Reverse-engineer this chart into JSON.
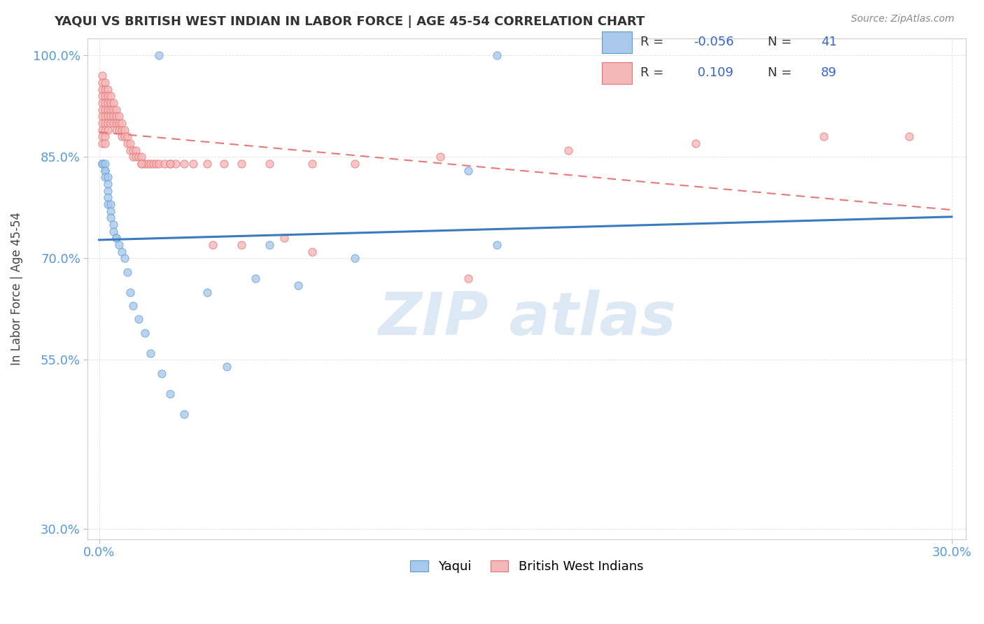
{
  "title": "YAQUI VS BRITISH WEST INDIAN IN LABOR FORCE | AGE 45-54 CORRELATION CHART",
  "source": "Source: ZipAtlas.com",
  "ylabel": "In Labor Force | Age 45-54",
  "xlim": [
    -0.004,
    0.305
  ],
  "ylim": [
    0.285,
    1.025
  ],
  "xticks": [
    0.0,
    0.3
  ],
  "xticklabels": [
    "0.0%",
    "30.0%"
  ],
  "yticks": [
    0.3,
    0.55,
    0.7,
    0.85,
    1.0
  ],
  "yticklabels": [
    "30.0%",
    "55.0%",
    "70.0%",
    "85.0%",
    "100.0%"
  ],
  "yaqui_R": -0.056,
  "yaqui_N": 41,
  "bwi_R": 0.109,
  "bwi_N": 89,
  "yaqui_fill_color": "#aac8ea",
  "bwi_fill_color": "#f5b8b8",
  "yaqui_edge_color": "#5a9fd4",
  "bwi_edge_color": "#e87070",
  "yaqui_trend_color": "#3a7abf",
  "bwi_trend_color": "#e87878",
  "tick_color": "#5599dd",
  "grid_color": "#dddddd",
  "background_color": "#ffffff",
  "title_color": "#333333",
  "source_color": "#888888",
  "ylabel_color": "#444444",
  "watermark_color": "#dde8f5",
  "legend_border_color": "#cccccc",
  "legend_R_color": "#333333",
  "legend_val_color": "#3366cc",
  "yaqui_x": [
    0.001,
    0.001,
    0.001,
    0.002,
    0.002,
    0.002,
    0.002,
    0.003,
    0.003,
    0.003,
    0.003,
    0.003,
    0.004,
    0.004,
    0.004,
    0.005,
    0.005,
    0.006,
    0.006,
    0.007,
    0.008,
    0.009,
    0.01,
    0.011,
    0.012,
    0.014,
    0.016,
    0.018,
    0.022,
    0.025,
    0.03,
    0.038,
    0.045,
    0.055,
    0.07,
    0.09,
    0.14,
    0.14,
    0.021,
    0.06,
    0.13
  ],
  "yaqui_y": [
    0.84,
    0.84,
    0.84,
    0.84,
    0.83,
    0.83,
    0.82,
    0.82,
    0.81,
    0.8,
    0.79,
    0.78,
    0.78,
    0.77,
    0.76,
    0.75,
    0.74,
    0.73,
    0.73,
    0.72,
    0.71,
    0.7,
    0.68,
    0.65,
    0.63,
    0.61,
    0.59,
    0.56,
    0.53,
    0.5,
    0.47,
    0.65,
    0.54,
    0.67,
    0.66,
    0.7,
    0.72,
    1.0,
    1.0,
    0.72,
    0.83
  ],
  "bwi_x": [
    0.001,
    0.001,
    0.001,
    0.001,
    0.001,
    0.001,
    0.001,
    0.001,
    0.001,
    0.001,
    0.001,
    0.002,
    0.002,
    0.002,
    0.002,
    0.002,
    0.002,
    0.002,
    0.002,
    0.002,
    0.002,
    0.003,
    0.003,
    0.003,
    0.003,
    0.003,
    0.003,
    0.003,
    0.004,
    0.004,
    0.004,
    0.004,
    0.004,
    0.005,
    0.005,
    0.005,
    0.005,
    0.006,
    0.006,
    0.006,
    0.006,
    0.007,
    0.007,
    0.007,
    0.008,
    0.008,
    0.008,
    0.009,
    0.009,
    0.01,
    0.01,
    0.011,
    0.011,
    0.012,
    0.012,
    0.013,
    0.013,
    0.014,
    0.015,
    0.015,
    0.016,
    0.017,
    0.018,
    0.019,
    0.02,
    0.021,
    0.023,
    0.025,
    0.027,
    0.03,
    0.033,
    0.038,
    0.044,
    0.05,
    0.06,
    0.075,
    0.09,
    0.12,
    0.165,
    0.21,
    0.255,
    0.285,
    0.13,
    0.05,
    0.075,
    0.065,
    0.04,
    0.025,
    0.015
  ],
  "bwi_y": [
    0.97,
    0.96,
    0.95,
    0.94,
    0.93,
    0.92,
    0.91,
    0.9,
    0.89,
    0.88,
    0.87,
    0.96,
    0.95,
    0.94,
    0.93,
    0.92,
    0.91,
    0.9,
    0.89,
    0.88,
    0.87,
    0.95,
    0.94,
    0.93,
    0.92,
    0.91,
    0.9,
    0.89,
    0.94,
    0.93,
    0.92,
    0.91,
    0.9,
    0.93,
    0.92,
    0.91,
    0.9,
    0.92,
    0.91,
    0.9,
    0.89,
    0.91,
    0.9,
    0.89,
    0.9,
    0.89,
    0.88,
    0.89,
    0.88,
    0.88,
    0.87,
    0.87,
    0.86,
    0.86,
    0.85,
    0.86,
    0.85,
    0.85,
    0.85,
    0.84,
    0.84,
    0.84,
    0.84,
    0.84,
    0.84,
    0.84,
    0.84,
    0.84,
    0.84,
    0.84,
    0.84,
    0.84,
    0.84,
    0.84,
    0.84,
    0.84,
    0.84,
    0.85,
    0.86,
    0.87,
    0.88,
    0.88,
    0.67,
    0.72,
    0.71,
    0.73,
    0.72,
    0.84,
    0.84
  ]
}
